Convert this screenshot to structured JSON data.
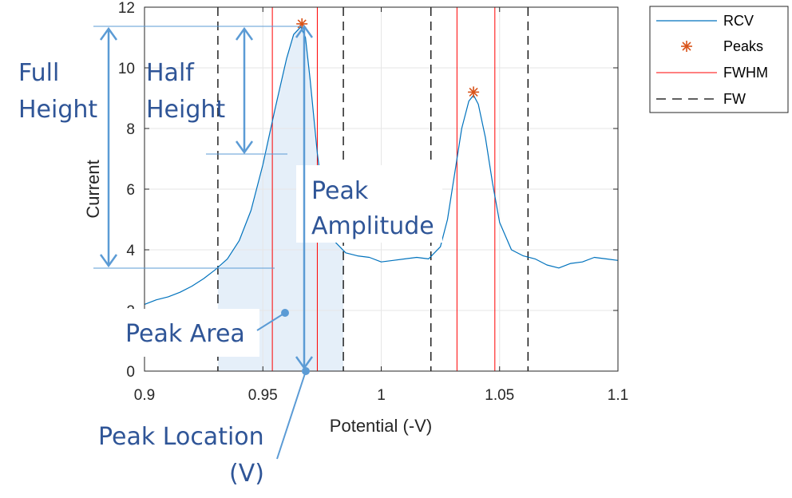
{
  "chart_data": {
    "type": "line",
    "xlabel": "Potential (-V)",
    "ylabel": "Current",
    "xlim": [
      0.9,
      1.1
    ],
    "ylim": [
      0,
      12
    ],
    "x_ticks": [
      "0.9",
      "0.95",
      "1",
      "1.05",
      "1.1"
    ],
    "y_ticks": [
      "0",
      "2",
      "4",
      "6",
      "8",
      "10",
      "12"
    ],
    "grid": true,
    "legend_position": "top-right",
    "series": [
      {
        "name": "RCV",
        "kind": "line",
        "color": "#0072BD",
        "x": [
          0.9,
          0.905,
          0.91,
          0.915,
          0.92,
          0.925,
          0.93,
          0.935,
          0.94,
          0.945,
          0.95,
          0.955,
          0.96,
          0.963,
          0.966,
          0.968,
          0.97,
          0.973,
          0.976,
          0.98,
          0.985,
          0.99,
          0.995,
          1.0,
          1.005,
          1.01,
          1.015,
          1.02,
          1.025,
          1.028,
          1.031,
          1.034,
          1.037,
          1.039,
          1.041,
          1.044,
          1.047,
          1.05,
          1.055,
          1.06,
          1.065,
          1.07,
          1.075,
          1.08,
          1.085,
          1.09,
          1.095,
          1.1
        ],
        "y": [
          2.2,
          2.35,
          2.45,
          2.6,
          2.8,
          3.05,
          3.35,
          3.7,
          4.3,
          5.3,
          6.8,
          8.6,
          10.3,
          11.1,
          11.35,
          11.0,
          9.6,
          7.2,
          5.4,
          4.3,
          3.9,
          3.8,
          3.75,
          3.6,
          3.65,
          3.7,
          3.75,
          3.7,
          4.1,
          5.0,
          6.5,
          8.0,
          8.9,
          9.1,
          8.8,
          7.7,
          6.2,
          4.9,
          4.0,
          3.8,
          3.7,
          3.5,
          3.4,
          3.55,
          3.6,
          3.75,
          3.7,
          3.65
        ]
      },
      {
        "name": "Peaks",
        "kind": "marker",
        "color": "#D95319",
        "x": [
          0.9665,
          1.039
        ],
        "y": [
          11.45,
          9.2
        ]
      },
      {
        "name": "FWHM",
        "kind": "vline",
        "color": "#FF0000",
        "x": [
          0.954,
          0.973,
          1.032,
          1.048
        ]
      },
      {
        "name": "FW",
        "kind": "vline",
        "color": "#000000",
        "x": [
          0.931,
          0.984,
          1.021,
          1.062
        ]
      }
    ],
    "annotations": {
      "full_height": [
        "Full",
        "Height"
      ],
      "half_height": [
        "Half",
        "Height"
      ],
      "peak_amplitude": [
        "Peak",
        "Amplitude"
      ],
      "peak_area": "Peak Area",
      "peak_location": [
        "Peak Location",
        "(V)"
      ]
    },
    "annotation_color": "#2F5597",
    "arrow_color": "#5B9BD5",
    "area_fill_color": "#DEEBF7"
  }
}
